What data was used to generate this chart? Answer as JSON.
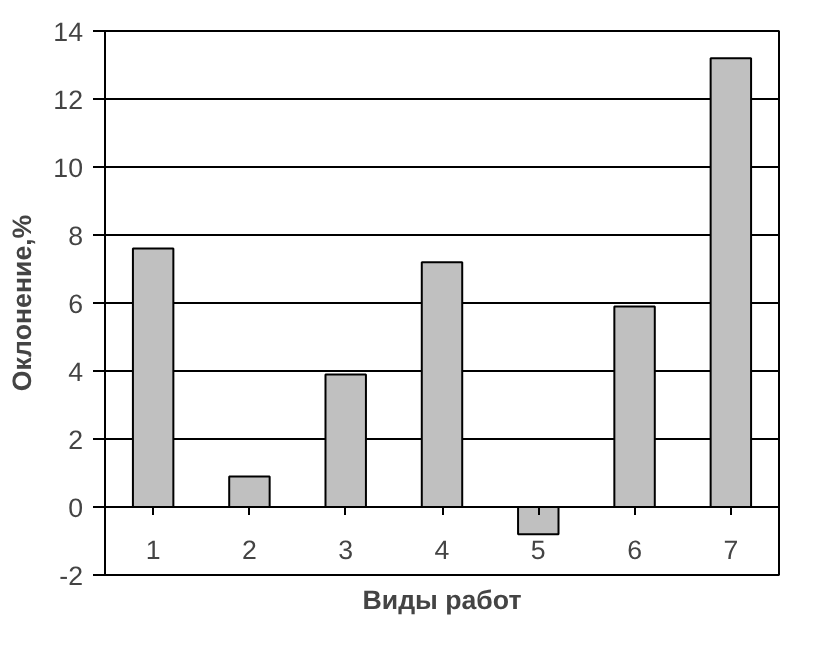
{
  "chart_data": {
    "type": "bar",
    "xlabel": "Виды работ",
    "ylabel": "Оклонение,%",
    "categories": [
      "1",
      "2",
      "3",
      "4",
      "5",
      "6",
      "7"
    ],
    "values": [
      7.6,
      0.9,
      3.9,
      7.2,
      -0.8,
      5.9,
      13.2
    ],
    "color": "#c0c0c0",
    "ylim": [
      -2,
      14
    ],
    "yticks": [
      -2,
      0,
      2,
      4,
      6,
      8,
      10,
      12,
      14
    ],
    "grid": "y"
  }
}
